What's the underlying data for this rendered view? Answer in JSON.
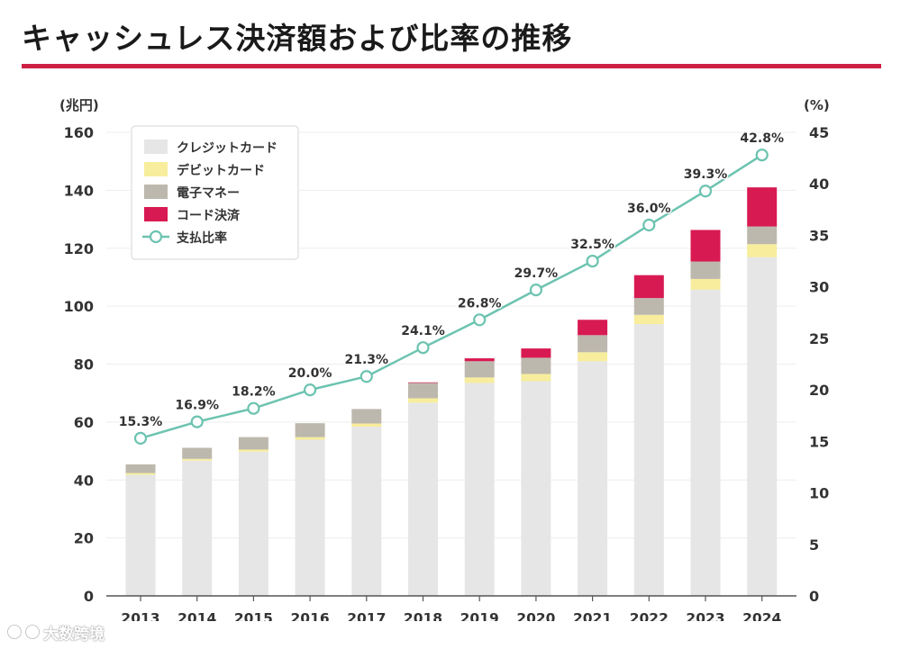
{
  "page": {
    "title": "キャッシュレス決済額および比率の推移",
    "watermark": "大数跨境"
  },
  "colors": {
    "accent": "#cc1f43",
    "credit": "#e6e6e6",
    "debit": "#f7ed9c",
    "emoney": "#bdb8ad",
    "code": "#d81a52",
    "ratio": "#6cc3b0"
  },
  "chart_data": {
    "type": "bar",
    "stacked": true,
    "categories": [
      "2013",
      "2014",
      "2015",
      "2016",
      "2017",
      "2018",
      "2019",
      "2020",
      "2021",
      "2022",
      "2023",
      "2024"
    ],
    "y_left": {
      "unit": "(兆円)",
      "range": [
        0,
        160
      ],
      "ticks": [
        "0",
        "20",
        "40",
        "60",
        "80",
        "100",
        "120",
        "140",
        "160"
      ]
    },
    "y_right": {
      "unit": "(%)",
      "range": [
        0,
        45
      ],
      "ticks": [
        "0",
        "5",
        "10",
        "15",
        "20",
        "25",
        "30",
        "35",
        "40",
        "45"
      ]
    },
    "grid": true,
    "legend_position": "top-left",
    "series": [
      {
        "name": "クレジットカード",
        "color": "#e6e6e6",
        "axis": "left",
        "values": [
          41.8,
          46.7,
          49.8,
          53.9,
          58.4,
          66.7,
          73.5,
          74.1,
          81.0,
          93.8,
          105.7,
          116.9
        ]
      },
      {
        "name": "デビットカード",
        "color": "#f7ed9c",
        "axis": "left",
        "values": [
          0.6,
          0.6,
          0.7,
          0.9,
          1.1,
          1.5,
          1.9,
          2.5,
          3.1,
          3.2,
          3.7,
          4.5
        ]
      },
      {
        "name": "電子マネー",
        "color": "#bdb8ad",
        "axis": "left",
        "values": [
          3.0,
          3.8,
          4.3,
          4.8,
          5.0,
          5.3,
          5.6,
          5.6,
          5.9,
          5.8,
          6.0,
          6.1
        ]
      },
      {
        "name": "コード決済",
        "color": "#d81a52",
        "axis": "left",
        "values": [
          0,
          0,
          0,
          0,
          0,
          0.2,
          1.0,
          3.2,
          5.3,
          7.9,
          10.9,
          13.5
        ]
      }
    ],
    "line": {
      "name": "支払比率",
      "color": "#6cc3b0",
      "axis": "right",
      "values": [
        15.3,
        16.9,
        18.2,
        20.0,
        21.3,
        24.1,
        26.8,
        29.7,
        32.5,
        36.0,
        39.3,
        42.8
      ],
      "labels": [
        "15.3%",
        "16.9%",
        "18.2%",
        "20.0%",
        "21.3%",
        "24.1%",
        "26.8%",
        "29.7%",
        "32.5%",
        "36.0%",
        "39.3%",
        "42.8%"
      ]
    }
  }
}
